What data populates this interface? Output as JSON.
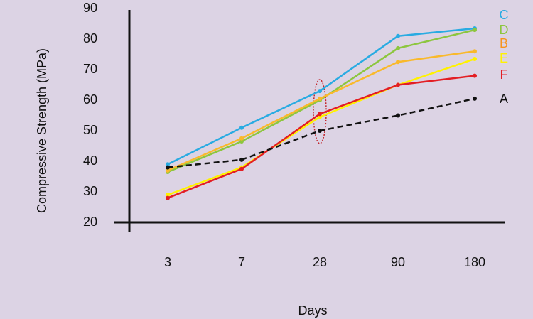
{
  "chart_data": {
    "type": "line",
    "x_label": "Days",
    "y_label": "Compressive Strength (MPa)",
    "categories": [
      "3",
      "7",
      "28",
      "90",
      "180"
    ],
    "ylim": [
      20,
      90
    ],
    "yticks": [
      20,
      30,
      40,
      50,
      60,
      70,
      80,
      90
    ],
    "series": [
      {
        "name": "C",
        "color": "#29abe2",
        "values": [
          39,
          51,
          63,
          81,
          83.5
        ]
      },
      {
        "name": "D",
        "color": "#8dc63f",
        "values": [
          36.5,
          46.5,
          60,
          77,
          83
        ]
      },
      {
        "name": "B",
        "color": "#f7941d",
        "line_color": "#f9b92b",
        "values": [
          37,
          47.5,
          60.5,
          72.5,
          76
        ]
      },
      {
        "name": "E",
        "color": "#fff200",
        "values": [
          29,
          38,
          54.5,
          65,
          73.5
        ]
      },
      {
        "name": "F",
        "color": "#e31e24",
        "values": [
          28,
          37.5,
          55.5,
          65,
          68
        ]
      },
      {
        "name": "A",
        "color": "#111111",
        "dashed": true,
        "values": [
          38,
          40.5,
          50,
          55,
          60.5
        ]
      }
    ]
  }
}
